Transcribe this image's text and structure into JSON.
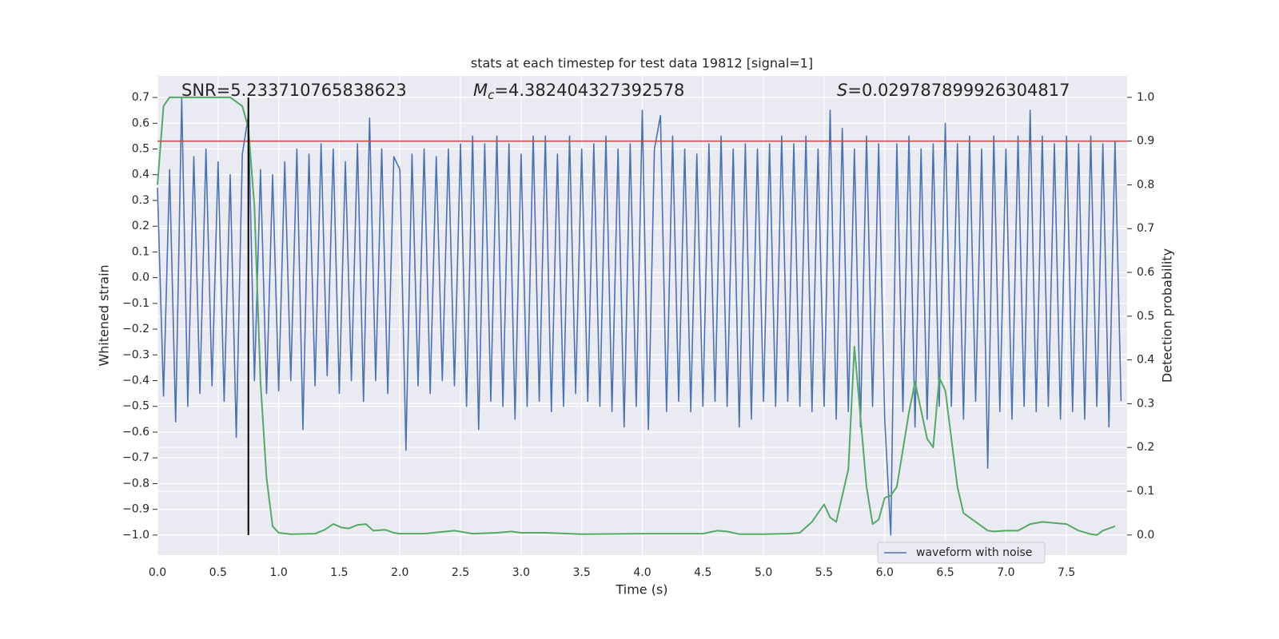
{
  "chart_data": {
    "type": "line",
    "title": "stats at each timestep for test data 19812 [signal=1]",
    "x_label": "Time (s)",
    "y_label": "Whitened strain",
    "y2_label": "Detection probability",
    "xlim": [
      0,
      8.0
    ],
    "ylim": [
      -1.078,
      0.784
    ],
    "y2lim": [
      -0.046,
      1.049
    ],
    "xticks": [
      {
        "value": 0,
        "label": "0.0"
      },
      0.5,
      {
        "value": 1,
        "label": "1.0"
      },
      1.5,
      {
        "value": 2,
        "label": "2.0"
      },
      2.5,
      {
        "value": 3,
        "label": "3.0"
      },
      3.5,
      {
        "value": 4,
        "label": "4.0"
      },
      4.5,
      {
        "value": 5,
        "label": "5.0"
      },
      5.5,
      {
        "value": 6,
        "label": "6.0"
      },
      6.5,
      {
        "value": 7,
        "label": "7.0"
      },
      7.5
    ],
    "yticks": [
      {
        "value": -1.0,
        "label": "−1.0"
      },
      {
        "value": -0.9,
        "label": "−0.9"
      },
      {
        "value": -0.8,
        "label": "−0.8"
      },
      {
        "value": -0.7,
        "label": "−0.7"
      },
      {
        "value": -0.6,
        "label": "−0.6"
      },
      {
        "value": -0.5,
        "label": "−0.5"
      },
      {
        "value": -0.4,
        "label": "−0.4"
      },
      {
        "value": -0.3,
        "label": "−0.3"
      },
      {
        "value": -0.2,
        "label": "−0.2"
      },
      {
        "value": -0.1,
        "label": "−0.1"
      },
      {
        "value": 0,
        "label": "0.0"
      },
      0.1,
      0.2,
      0.3,
      0.4,
      0.5,
      0.6,
      0.7
    ],
    "y2ticks": [
      {
        "value": 0,
        "label": "0.0"
      },
      0.1,
      0.2,
      0.3,
      0.4,
      0.5,
      0.6,
      0.7,
      0.8,
      0.9,
      {
        "value": 1,
        "label": "1.0"
      }
    ],
    "grid": true,
    "legend": "lower right",
    "series": [
      {
        "name": "waveform with noise",
        "color": "#4c72b0",
        "axis": "y",
        "x": [
          0,
          0.05,
          0.1,
          0.15,
          0.2,
          0.25,
          0.3,
          0.35,
          0.4,
          0.45,
          0.5,
          0.55,
          0.6,
          0.65,
          0.7,
          0.75,
          0.8,
          0.85,
          0.9,
          0.95,
          1,
          1.05,
          1.1,
          1.15,
          1.2,
          1.25,
          1.3,
          1.35,
          1.4,
          1.45,
          1.5,
          1.55,
          1.6,
          1.65,
          1.7,
          1.75,
          1.8,
          1.85,
          1.9,
          1.95,
          2,
          2.05,
          2.1,
          2.15,
          2.2,
          2.25,
          2.3,
          2.35,
          2.4,
          2.45,
          2.5,
          2.55,
          2.6,
          2.65,
          2.7,
          2.75,
          2.8,
          2.85,
          2.9,
          2.95,
          3,
          3.05,
          3.1,
          3.15,
          3.2,
          3.25,
          3.3,
          3.35,
          3.4,
          3.45,
          3.5,
          3.55,
          3.6,
          3.65,
          3.7,
          3.75,
          3.8,
          3.85,
          3.9,
          3.95,
          4,
          4.05,
          4.1,
          4.15,
          4.2,
          4.25,
          4.3,
          4.35,
          4.4,
          4.45,
          4.5,
          4.55,
          4.6,
          4.65,
          4.7,
          4.75,
          4.8,
          4.85,
          4.9,
          4.95,
          5,
          5.05,
          5.1,
          5.15,
          5.2,
          5.25,
          5.3,
          5.35,
          5.4,
          5.45,
          5.5,
          5.55,
          5.6,
          5.65,
          5.7,
          5.75,
          5.8,
          5.85,
          5.9,
          5.95,
          6,
          6.05,
          6.1,
          6.15,
          6.2,
          6.25,
          6.3,
          6.35,
          6.4,
          6.45,
          6.5,
          6.55,
          6.6,
          6.65,
          6.7,
          6.75,
          6.8,
          6.85,
          6.9,
          6.95,
          7,
          7.05,
          7.1,
          7.15,
          7.2,
          7.25,
          7.3,
          7.35,
          7.4,
          7.45,
          7.5,
          7.55,
          7.6,
          7.65,
          7.7,
          7.75,
          7.8,
          7.85,
          7.9,
          7.95
        ],
        "values": [
          0.35,
          -0.46,
          0.42,
          -0.56,
          0.7,
          -0.5,
          0.47,
          -0.45,
          0.5,
          -0.42,
          0.45,
          -0.48,
          0.4,
          -0.62,
          0.48,
          0.63,
          -0.4,
          0.42,
          -0.45,
          0.4,
          -0.44,
          0.45,
          -0.4,
          0.5,
          -0.59,
          0.48,
          -0.42,
          0.52,
          -0.38,
          0.5,
          -0.45,
          0.45,
          -0.4,
          0.52,
          -0.48,
          0.62,
          -0.4,
          0.5,
          -0.45,
          0.47,
          0.42,
          -0.67,
          0.48,
          -0.42,
          0.5,
          -0.45,
          0.47,
          -0.4,
          0.5,
          -0.42,
          0.52,
          -0.5,
          0.55,
          -0.59,
          0.52,
          -0.48,
          0.55,
          -0.5,
          0.52,
          -0.55,
          0.48,
          -0.5,
          0.55,
          -0.48,
          0.55,
          -0.52,
          0.48,
          -0.5,
          0.55,
          -0.45,
          0.5,
          -0.48,
          0.52,
          -0.5,
          0.55,
          -0.52,
          0.5,
          -0.58,
          0.52,
          -0.5,
          0.65,
          -0.59,
          0.5,
          0.63,
          -0.52,
          0.55,
          -0.48,
          0.5,
          -0.52,
          0.48,
          -0.5,
          0.52,
          -0.48,
          0.55,
          -0.5,
          0.5,
          -0.58,
          0.52,
          -0.55,
          0.5,
          -0.48,
          0.52,
          -0.5,
          0.55,
          -0.48,
          0.52,
          -0.5,
          0.55,
          -0.52,
          0.5,
          -0.5,
          0.65,
          -0.55,
          0.58,
          -0.52,
          0.5,
          -0.58,
          0.55,
          -0.5,
          0.52,
          -0.55,
          -1.0,
          0.52,
          -0.52,
          0.55,
          -0.58,
          0.5,
          -0.55,
          0.52,
          -0.5,
          0.6,
          -0.5,
          0.52,
          -0.55,
          0.55,
          -0.48,
          0.5,
          -0.74,
          0.55,
          -0.52,
          0.5,
          -0.55,
          0.55,
          -0.5,
          0.65,
          -0.52,
          0.55,
          -0.5,
          0.52,
          -0.55,
          0.55,
          -0.52,
          0.52,
          -0.55,
          0.55,
          -0.5,
          0.52,
          -0.58,
          0.53,
          -0.48
        ]
      },
      {
        "color": "#55a868",
        "axis": "y2",
        "x": [
          0,
          0.05,
          0.1,
          0.2,
          0.3,
          0.4,
          0.5,
          0.6,
          0.7,
          0.75,
          0.8,
          0.85,
          0.9,
          0.95,
          1.0,
          1.1,
          1.3,
          1.38,
          1.45,
          1.52,
          1.58,
          1.65,
          1.72,
          1.78,
          1.88,
          1.95,
          2.0,
          2.2,
          2.45,
          2.6,
          2.8,
          2.92,
          3.0,
          3.2,
          3.5,
          4.0,
          4.5,
          4.62,
          4.7,
          4.8,
          5.0,
          5.2,
          5.3,
          5.4,
          5.5,
          5.55,
          5.6,
          5.7,
          5.75,
          5.85,
          5.9,
          5.95,
          6.0,
          6.05,
          6.1,
          6.2,
          6.25,
          6.35,
          6.4,
          6.45,
          6.5,
          6.6,
          6.65,
          6.75,
          6.85,
          6.9,
          7.0,
          7.1,
          7.2,
          7.3,
          7.5,
          7.6,
          7.7,
          7.75,
          7.8,
          7.9
        ],
        "values": [
          0.8,
          0.98,
          1.0,
          1.0,
          1.0,
          1.0,
          1.0,
          1.0,
          0.98,
          0.93,
          0.75,
          0.35,
          0.13,
          0.02,
          0.005,
          0.002,
          0.003,
          0.012,
          0.025,
          0.017,
          0.015,
          0.023,
          0.025,
          0.01,
          0.012,
          0.005,
          0.003,
          0.003,
          0.01,
          0.003,
          0.005,
          0.008,
          0.005,
          0.005,
          0.002,
          0.003,
          0.003,
          0.01,
          0.008,
          0.002,
          0.002,
          0.003,
          0.005,
          0.03,
          0.07,
          0.04,
          0.03,
          0.15,
          0.43,
          0.11,
          0.025,
          0.035,
          0.085,
          0.09,
          0.11,
          0.28,
          0.35,
          0.22,
          0.2,
          0.36,
          0.33,
          0.11,
          0.05,
          0.03,
          0.01,
          0.008,
          0.01,
          0.01,
          0.025,
          0.03,
          0.025,
          0.01,
          0.002,
          0.0,
          0.01,
          0.02
        ]
      }
    ],
    "hlines": [
      {
        "y": 0.9,
        "axis": "y2",
        "color": "#c44e52"
      }
    ],
    "vlines": [
      {
        "x": 0.75,
        "ymin": -1.0,
        "ymax": 0.7,
        "color": "#000000"
      }
    ],
    "annotations": [
      {
        "text": "SNR=5.233710765838623"
      },
      {
        "symbol": "M",
        "subscript": "c",
        "text": "=4.382404327392578"
      },
      {
        "symbol": "S",
        "text": "=0.029787899926304817"
      }
    ]
  }
}
